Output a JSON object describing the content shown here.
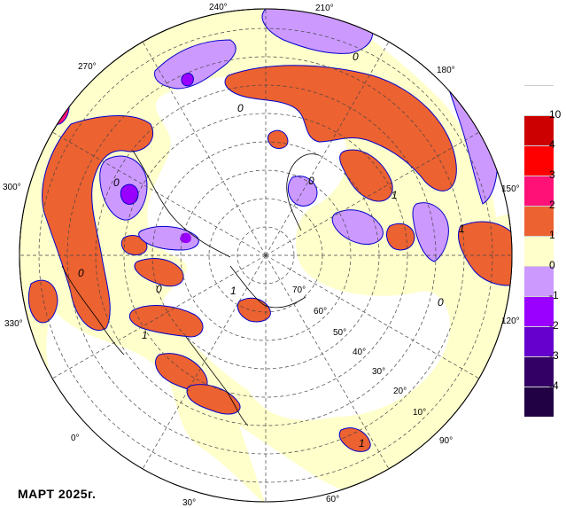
{
  "caption": "МАРТ  2025г.",
  "colors": {
    "ocean": "#ffffff",
    "neutral_pos": "#ffffcc",
    "pos_1_2": "#ec6231",
    "pos_2_3": "#ff1178",
    "pos_3_4": "#ff0000",
    "pos_4_10": "#cc0000",
    "neg_0_m1": "#cc99ff",
    "neg_m1_m2": "#9a00ff",
    "neg_m2_m3": "#6600cc",
    "neg_m3_m4": "#330066",
    "contour": "#0000cc",
    "graticule": "#444444"
  },
  "legend": {
    "labels": [
      "10",
      "4",
      "3",
      "2",
      "1",
      "0",
      "-1",
      "-2",
      "-3",
      "-4"
    ],
    "swatches": [
      "#ffffff",
      "#cc0000",
      "#ff0000",
      "#ff1178",
      "#ec6231",
      "#ffffcc",
      "#cc99ff",
      "#9a00ff",
      "#6600cc",
      "#330066",
      "#220044"
    ]
  },
  "longitude_labels": [
    "240°",
    "210°",
    "180°",
    "150°",
    "120°",
    "90°",
    "60°",
    "30°",
    "0°",
    "330°",
    "300°",
    "270°"
  ],
  "latitude_labels": [
    "70°",
    "60°",
    "50°",
    "40°",
    "30°",
    "20°",
    "10°"
  ],
  "contour_labels": [
    "0",
    "0",
    "0",
    "0",
    "0",
    "1",
    "1",
    "1",
    "1",
    "1",
    "0",
    "0"
  ]
}
